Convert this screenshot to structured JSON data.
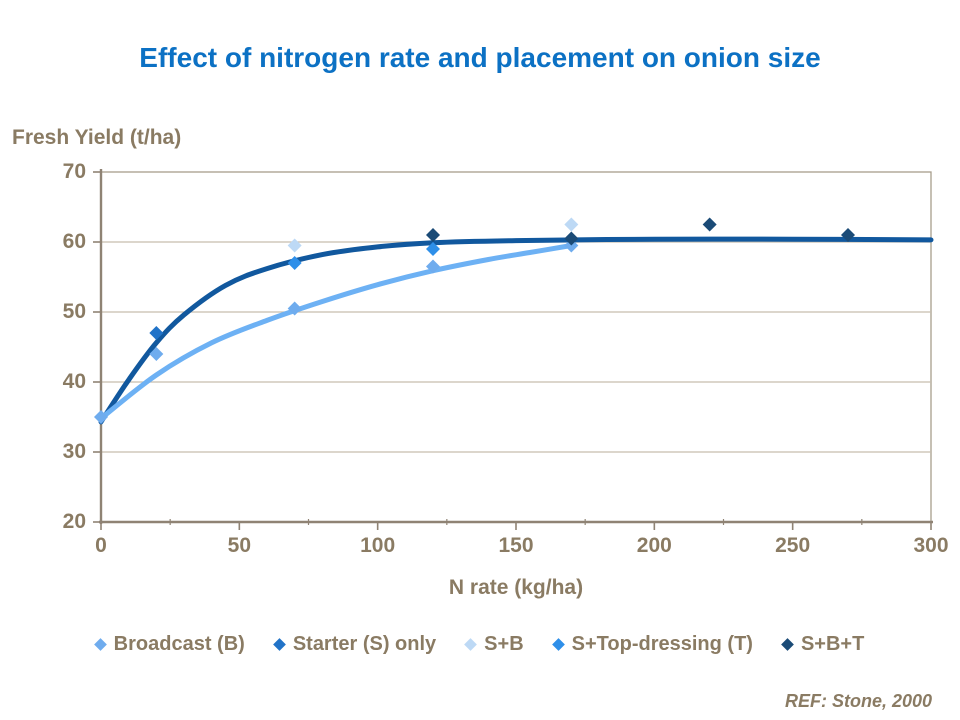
{
  "slide": {
    "title": "Effect of nitrogen rate and placement on onion size",
    "ref": "REF: Stone, 2000"
  },
  "colors": {
    "title": "#0C71C4",
    "text": "#8A7B63",
    "axis": "#8F8374",
    "border": "#A79D8C",
    "grid": "#C6BDAE",
    "background": "#FFFFFF"
  },
  "chart_data": {
    "type": "scatter",
    "title": "Effect of nitrogen rate and placement on onion size",
    "xlabel": "N rate (kg/ha)",
    "ylabel": "Fresh Yield (t/ha)",
    "xlim": [
      0,
      300
    ],
    "ylim": [
      20,
      70
    ],
    "x_ticks": [
      0,
      50,
      100,
      150,
      200,
      250,
      300
    ],
    "x_minor_ticks": [
      25,
      75,
      125,
      175,
      225,
      275
    ],
    "y_ticks": [
      70,
      60,
      50,
      40,
      30,
      20
    ],
    "grid": "horizontal-only",
    "legend_position": "bottom",
    "series": [
      {
        "name": "Broadcast (B)",
        "color": "#6FACEE",
        "points": [
          [
            0,
            35
          ],
          [
            20,
            44
          ],
          [
            70,
            50.5
          ],
          [
            120,
            56.5
          ],
          [
            170,
            59.5
          ]
        ]
      },
      {
        "name": "Starter (S) only",
        "color": "#2173C8",
        "points": [
          [
            20,
            47
          ]
        ]
      },
      {
        "name": "S+B",
        "color": "#BDD9F5",
        "points": [
          [
            70,
            59.5
          ],
          [
            170,
            62.5
          ]
        ]
      },
      {
        "name": "S+Top-dressing (T)",
        "color": "#2E8FE9",
        "points": [
          [
            70,
            57
          ],
          [
            120,
            59
          ]
        ]
      },
      {
        "name": "S+B+T",
        "color": "#1B4B77",
        "points": [
          [
            120,
            61
          ],
          [
            170,
            60.5
          ],
          [
            220,
            62.5
          ],
          [
            270,
            61
          ]
        ]
      }
    ],
    "trend_lines": [
      {
        "name": "banded-placement-trend",
        "color": "#11589E",
        "width": 5,
        "points": [
          [
            0,
            34.3
          ],
          [
            10,
            40.3
          ],
          [
            20,
            45.6
          ],
          [
            30,
            49.6
          ],
          [
            45,
            53.8
          ],
          [
            60,
            56.2
          ],
          [
            80,
            58.2
          ],
          [
            100,
            59.3
          ],
          [
            120,
            59.9
          ],
          [
            150,
            60.2
          ],
          [
            200,
            60.4
          ],
          [
            250,
            60.4
          ],
          [
            300,
            60.3
          ]
        ]
      },
      {
        "name": "broadcast-trend",
        "color": "#6DB1F4",
        "width": 5,
        "points": [
          [
            0,
            34.8
          ],
          [
            20,
            41.0
          ],
          [
            40,
            45.6
          ],
          [
            60,
            48.8
          ],
          [
            80,
            51.5
          ],
          [
            100,
            53.9
          ],
          [
            120,
            55.9
          ],
          [
            140,
            57.5
          ],
          [
            155,
            58.5
          ],
          [
            170,
            59.5
          ]
        ]
      }
    ]
  }
}
